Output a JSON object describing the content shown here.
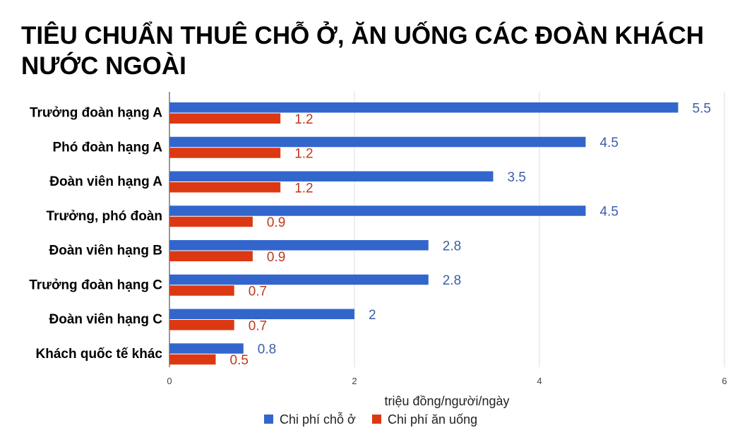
{
  "chart_data": {
    "type": "bar",
    "orientation": "horizontal",
    "title_lines": [
      "TIÊU CHUẨN THUÊ CHỖ Ở, ĂN UỐNG CÁC ĐOÀN KHÁCH",
      "NƯỚC NGOÀI"
    ],
    "categories": [
      "Trưởng đoàn hạng A",
      "Phó đoàn hạng A",
      "Đoàn viên hạng A",
      "Trưởng, phó đoàn",
      "Đoàn viên hạng B",
      "Trưởng đoàn hạng C",
      "Đoàn viên hạng C",
      "Khách quốc tế khác"
    ],
    "series": [
      {
        "name": "Chi phí chỗ ở",
        "color": "#3366cc",
        "values": [
          5.5,
          4.5,
          3.5,
          4.5,
          2.8,
          2.8,
          2,
          0.8
        ]
      },
      {
        "name": "Chi phí ăn uống",
        "color": "#dc3912",
        "values": [
          1.2,
          1.2,
          1.2,
          0.9,
          0.9,
          0.7,
          0.7,
          0.5
        ]
      }
    ],
    "xlabel": "triệu đồng/người/ngày",
    "xlim": [
      0,
      6
    ],
    "xticks": [
      0,
      2,
      4,
      6
    ],
    "grid": true,
    "legend_position": "bottom"
  }
}
